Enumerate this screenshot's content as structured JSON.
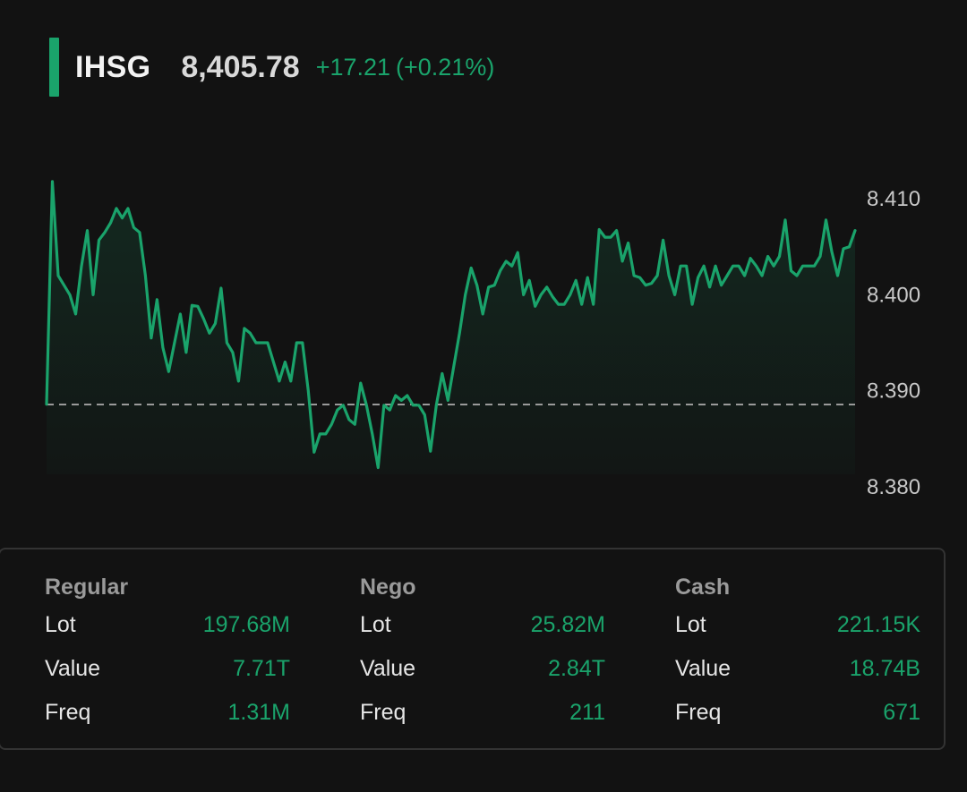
{
  "header": {
    "ticker": "IHSG",
    "price": "8,405.78",
    "change": "+17.21",
    "change_pct": "(+0.21%)"
  },
  "colors": {
    "accent": "#1aa36b",
    "background": "#121212",
    "border": "#333333"
  },
  "chart_data": {
    "type": "line",
    "ylim": [
      8378.5,
      8413
    ],
    "yticks": [
      "8.410",
      "8.400",
      "8.390",
      "8.380"
    ],
    "ytick_values": [
      8410,
      8400,
      8390,
      8380
    ],
    "reference_value": 8388.57,
    "series": [
      {
        "values": [
          8388.6,
          8411.8,
          8402,
          8401,
          8400,
          8398,
          8403,
          8406.7,
          8400,
          8405.7,
          8406.5,
          8407.5,
          8409,
          8408,
          8409,
          8407,
          8406.5,
          8402,
          8395.5,
          8399.5,
          8394.5,
          8392,
          8395,
          8398,
          8394,
          8398.9,
          8398.8,
          8397.5,
          8396,
          8397,
          8400.7,
          8395,
          8394,
          8391,
          8396.5,
          8396,
          8395,
          8395,
          8395,
          8393,
          8391,
          8393,
          8391,
          8395,
          8395,
          8390,
          8383.6,
          8385.5,
          8385.5,
          8386.5,
          8388,
          8388.5,
          8387,
          8386.5,
          8390.8,
          8388.5,
          8385.5,
          8382,
          8388.5,
          8388,
          8389.5,
          8389,
          8389.5,
          8388.5,
          8388.5,
          8387.5,
          8383.7,
          8388.5,
          8391.8,
          8389,
          8392.5,
          8396,
          8400,
          8402.8,
          8401,
          8398,
          8400.8,
          8401,
          8402.5,
          8403.5,
          8403,
          8404.4,
          8400,
          8401.5,
          8398.8,
          8400,
          8400.8,
          8399.8,
          8399,
          8399,
          8400,
          8401.5,
          8399,
          8401.8,
          8399,
          8406.8,
          8406,
          8406,
          8406.7,
          8403.5,
          8405.4,
          8402,
          8401.8,
          8401,
          8401.2,
          8402,
          8405.7,
          8402,
          8400,
          8403,
          8403,
          8399,
          8401.8,
          8403,
          8400.8,
          8403,
          8401,
          8402,
          8403,
          8403,
          8402,
          8403.8,
          8403,
          8402,
          8404,
          8403,
          8404,
          8407.8,
          8402.5,
          8402,
          8403,
          8403,
          8403,
          8404,
          8407.8,
          8404.5,
          8402,
          8404.8,
          8405,
          8406.7
        ]
      }
    ]
  },
  "stats": [
    {
      "title": "Regular",
      "rows": [
        {
          "label": "Lot",
          "value": "197.68M"
        },
        {
          "label": "Value",
          "value": "7.71T"
        },
        {
          "label": "Freq",
          "value": "1.31M"
        }
      ]
    },
    {
      "title": "Nego",
      "rows": [
        {
          "label": "Lot",
          "value": "25.82M"
        },
        {
          "label": "Value",
          "value": "2.84T"
        },
        {
          "label": "Freq",
          "value": "211"
        }
      ]
    },
    {
      "title": "Cash",
      "rows": [
        {
          "label": "Lot",
          "value": "221.15K"
        },
        {
          "label": "Value",
          "value": "18.74B"
        },
        {
          "label": "Freq",
          "value": "671"
        }
      ]
    }
  ]
}
